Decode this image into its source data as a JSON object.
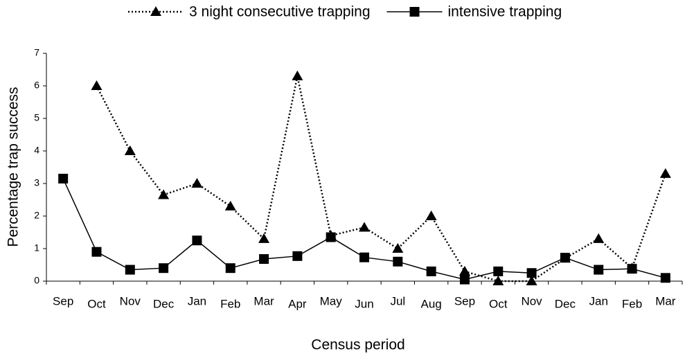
{
  "chart_data": {
    "type": "line",
    "x_label": "Census period",
    "y_label": "Percentage trap success",
    "categories": [
      "Sep",
      "Oct",
      "Nov",
      "Dec",
      "Jan",
      "Feb",
      "Mar",
      "Apr",
      "May",
      "Jun",
      "Jul",
      "Aug",
      "Sep",
      "Oct",
      "Nov",
      "Dec",
      "Jan",
      "Feb",
      "Mar"
    ],
    "series": [
      {
        "name": "3 night consecutive trapping",
        "color": "#000000",
        "marker": "triangle",
        "line_style": "dotted",
        "values": [
          null,
          6.0,
          4.0,
          2.65,
          3.0,
          2.3,
          1.3,
          6.3,
          1.4,
          1.65,
          1.0,
          2.0,
          0.3,
          0,
          0,
          0.7,
          1.3,
          0.4,
          3.3
        ]
      },
      {
        "name": "intensive trapping",
        "color": "#000000",
        "marker": "square",
        "line_style": "solid",
        "values": [
          3.15,
          0.9,
          0.35,
          0.4,
          1.25,
          0.4,
          0.68,
          0.77,
          1.35,
          0.73,
          0.6,
          0.3,
          0.05,
          0.3,
          0.25,
          0.72,
          0.35,
          0.38,
          0.1
        ]
      }
    ],
    "ylim": [
      0,
      7
    ],
    "yticks": [
      0,
      1,
      2,
      3,
      4,
      5,
      6,
      7
    ],
    "grid": false,
    "legend": "top"
  }
}
